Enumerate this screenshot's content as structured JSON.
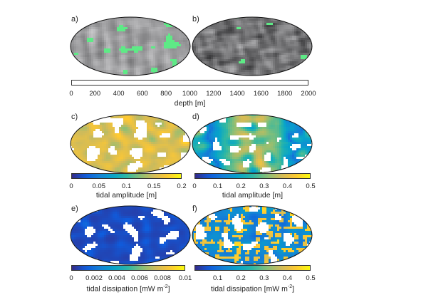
{
  "panels": [
    {
      "id": "a",
      "label": "a)",
      "kind": "depth",
      "seed": 11
    },
    {
      "id": "b",
      "label": "b)",
      "kind": "depth",
      "seed": 23
    },
    {
      "id": "c",
      "label": "c)",
      "kind": "amp",
      "seed": 37
    },
    {
      "id": "d",
      "label": "d)",
      "kind": "amp2",
      "seed": 41
    },
    {
      "id": "e",
      "label": "e)",
      "kind": "diss",
      "seed": 53
    },
    {
      "id": "f",
      "label": "f)",
      "kind": "diss2",
      "seed": 67
    }
  ],
  "colorbars": [
    {
      "id": "depth",
      "scale": "grayscale",
      "has_green_patch": true,
      "ticks": [
        "0",
        "200",
        "400",
        "600",
        "800",
        "1000",
        "1200",
        "1400",
        "1600",
        "1800",
        "2000"
      ],
      "range": [
        0,
        2000
      ],
      "label": "depth [m]"
    },
    {
      "id": "amp-c",
      "scale": "parula",
      "ticks": [
        "0",
        "0.05",
        "0.1",
        "0.15",
        "0.2"
      ],
      "range": [
        0,
        0.2
      ],
      "label": "tidal amplitude [m]"
    },
    {
      "id": "amp-d",
      "scale": "parula",
      "ticks": [
        "0",
        "0.1",
        "0.2",
        "0.3",
        "0.4",
        "0.5"
      ],
      "range": [
        0,
        0.5
      ],
      "label": "tidal amplitude [m]"
    },
    {
      "id": "diss-e",
      "scale": "parula",
      "ticks": [
        "0",
        "0.002",
        "0.004",
        "0.006",
        "0.008",
        "0.01"
      ],
      "range": [
        0,
        0.01
      ],
      "label_main": "tidal dissipation [mW m",
      "label_sup": "-2",
      "label_end": "]"
    },
    {
      "id": "diss-f",
      "scale": "parula",
      "ticks": [
        "0.1",
        "0.2",
        "0.3",
        "0.4",
        "0.5"
      ],
      "range": [
        0,
        0.5
      ],
      "label_main": "tidal dissipation [mW m",
      "label_sup": "-2",
      "label_end": "]"
    }
  ],
  "colors": {
    "land": "#5eea86",
    "land_white": "#ffffff",
    "coast": "#111111"
  }
}
